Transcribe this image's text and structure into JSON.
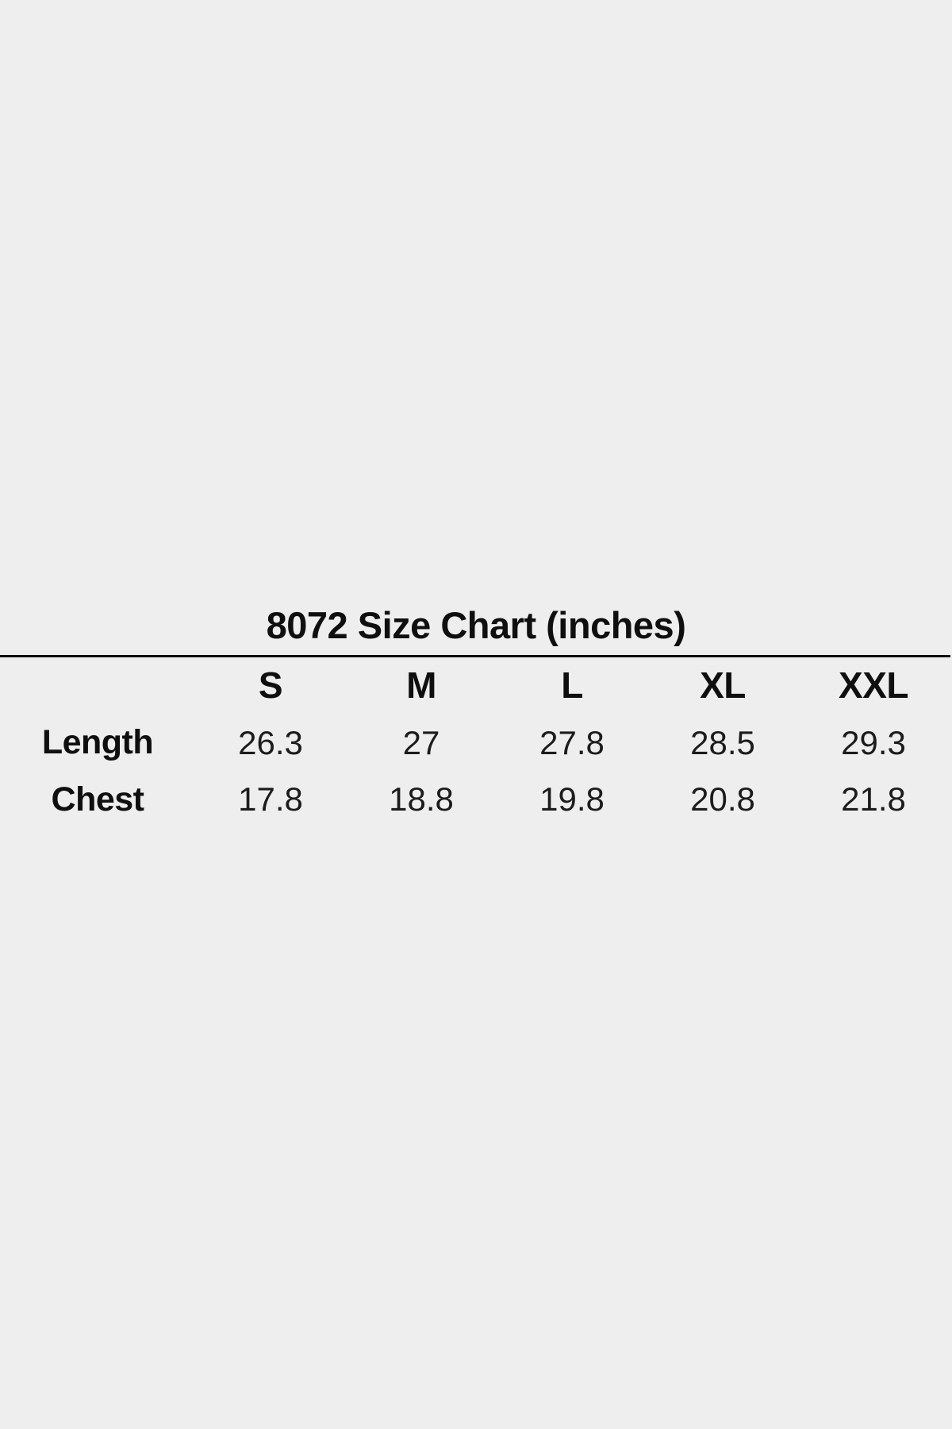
{
  "page": {
    "background_color": "#eeeeee",
    "text_color": "#0f0f0f",
    "rule_color": "#000000"
  },
  "chart_data": {
    "type": "table",
    "title": "8072 Size Chart (inches)",
    "unit": "inches",
    "columns": [
      "",
      "S",
      "M",
      "L",
      "XL",
      "XXL"
    ],
    "rows": [
      {
        "label": "Length",
        "values": [
          "26.3",
          "27",
          "27.8",
          "28.5",
          "29.3"
        ]
      },
      {
        "label": "Chest",
        "values": [
          "17.8",
          "18.8",
          "19.8",
          "20.8",
          "21.8"
        ]
      }
    ],
    "layout_hints": {
      "title_position": "centered above table",
      "divider": "full-width horizontal rule under title",
      "gridlines": "none",
      "header_style": "bold",
      "row_label_style": "bold"
    }
  }
}
